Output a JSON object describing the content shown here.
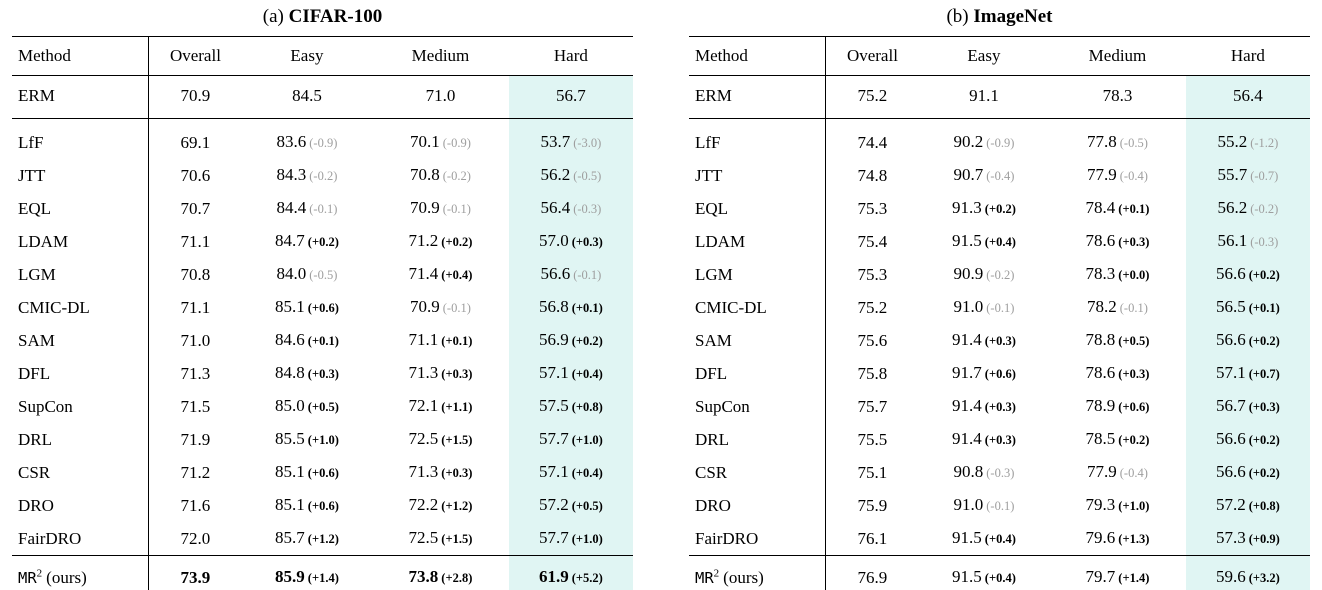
{
  "colors": {
    "hard_column_highlight": "#e0f5f3",
    "delta_negative": "#9e9e9e",
    "delta_positive": "#000000"
  },
  "tables": [
    {
      "caption_prefix": "(a)",
      "caption_title": "CIFAR-100",
      "columns": [
        "Method",
        "Overall",
        "Easy",
        "Medium",
        "Hard"
      ],
      "baseline": {
        "method": "ERM",
        "cells": [
          "70.9",
          "84.5",
          "71.0",
          "56.7"
        ]
      },
      "rows": [
        {
          "method": "LfF",
          "cells": [
            {
              "v": "69.1"
            },
            {
              "v": "83.6",
              "d": "(-0.9)"
            },
            {
              "v": "70.1",
              "d": "(-0.9)"
            },
            {
              "v": "53.7",
              "d": "(-3.0)"
            }
          ]
        },
        {
          "method": "JTT",
          "cells": [
            {
              "v": "70.6"
            },
            {
              "v": "84.3",
              "d": "(-0.2)"
            },
            {
              "v": "70.8",
              "d": "(-0.2)"
            },
            {
              "v": "56.2",
              "d": "(-0.5)"
            }
          ]
        },
        {
          "method": "EQL",
          "cells": [
            {
              "v": "70.7"
            },
            {
              "v": "84.4",
              "d": "(-0.1)"
            },
            {
              "v": "70.9",
              "d": "(-0.1)"
            },
            {
              "v": "56.4",
              "d": "(-0.3)"
            }
          ]
        },
        {
          "method": "LDAM",
          "cells": [
            {
              "v": "71.1"
            },
            {
              "v": "84.7",
              "d": "(+0.2)"
            },
            {
              "v": "71.2",
              "d": "(+0.2)"
            },
            {
              "v": "57.0",
              "d": "(+0.3)"
            }
          ]
        },
        {
          "method": "LGM",
          "cells": [
            {
              "v": "70.8"
            },
            {
              "v": "84.0",
              "d": "(-0.5)"
            },
            {
              "v": "71.4",
              "d": "(+0.4)"
            },
            {
              "v": "56.6",
              "d": "(-0.1)"
            }
          ]
        },
        {
          "method": "CMIC-DL",
          "cells": [
            {
              "v": "71.1"
            },
            {
              "v": "85.1",
              "d": "(+0.6)"
            },
            {
              "v": "70.9",
              "d": "(-0.1)"
            },
            {
              "v": "56.8",
              "d": "(+0.1)"
            }
          ]
        },
        {
          "method": "SAM",
          "cells": [
            {
              "v": "71.0"
            },
            {
              "v": "84.6",
              "d": "(+0.1)"
            },
            {
              "v": "71.1",
              "d": "(+0.1)"
            },
            {
              "v": "56.9",
              "d": "(+0.2)"
            }
          ]
        },
        {
          "method": "DFL",
          "cells": [
            {
              "v": "71.3"
            },
            {
              "v": "84.8",
              "d": "(+0.3)"
            },
            {
              "v": "71.3",
              "d": "(+0.3)"
            },
            {
              "v": "57.1",
              "d": "(+0.4)"
            }
          ]
        },
        {
          "method": "SupCon",
          "cells": [
            {
              "v": "71.5"
            },
            {
              "v": "85.0",
              "d": "(+0.5)"
            },
            {
              "v": "72.1",
              "d": "(+1.1)"
            },
            {
              "v": "57.5",
              "d": "(+0.8)"
            }
          ]
        },
        {
          "method": "DRL",
          "cells": [
            {
              "v": "71.9"
            },
            {
              "v": "85.5",
              "d": "(+1.0)"
            },
            {
              "v": "72.5",
              "d": "(+1.5)"
            },
            {
              "v": "57.7",
              "d": "(+1.0)"
            }
          ]
        },
        {
          "method": "CSR",
          "cells": [
            {
              "v": "71.2"
            },
            {
              "v": "85.1",
              "d": "(+0.6)"
            },
            {
              "v": "71.3",
              "d": "(+0.3)"
            },
            {
              "v": "57.1",
              "d": "(+0.4)"
            }
          ]
        },
        {
          "method": "DRO",
          "cells": [
            {
              "v": "71.6"
            },
            {
              "v": "85.1",
              "d": "(+0.6)"
            },
            {
              "v": "72.2",
              "d": "(+1.2)"
            },
            {
              "v": "57.2",
              "d": "(+0.5)"
            }
          ]
        },
        {
          "method": "FairDRO",
          "cells": [
            {
              "v": "72.0"
            },
            {
              "v": "85.7",
              "d": "(+1.2)"
            },
            {
              "v": "72.5",
              "d": "(+1.5)"
            },
            {
              "v": "57.7",
              "d": "(+1.0)"
            }
          ]
        }
      ],
      "final": {
        "method_mono": "MR",
        "method_sup": "2",
        "method_rest": "(ours)",
        "bold_values": true,
        "cells": [
          {
            "v": "73.9"
          },
          {
            "v": "85.9",
            "d": "(+1.4)"
          },
          {
            "v": "73.8",
            "d": "(+2.8)"
          },
          {
            "v": "61.9",
            "d": "(+5.2)"
          }
        ]
      }
    },
    {
      "caption_prefix": "(b)",
      "caption_title": "ImageNet",
      "columns": [
        "Method",
        "Overall",
        "Easy",
        "Medium",
        "Hard"
      ],
      "baseline": {
        "method": "ERM",
        "cells": [
          "75.2",
          "91.1",
          "78.3",
          "56.4"
        ]
      },
      "rows": [
        {
          "method": "LfF",
          "cells": [
            {
              "v": "74.4"
            },
            {
              "v": "90.2",
              "d": "(-0.9)"
            },
            {
              "v": "77.8",
              "d": "(-0.5)"
            },
            {
              "v": "55.2",
              "d": "(-1.2)"
            }
          ]
        },
        {
          "method": "JTT",
          "cells": [
            {
              "v": "74.8"
            },
            {
              "v": "90.7",
              "d": "(-0.4)"
            },
            {
              "v": "77.9",
              "d": "(-0.4)"
            },
            {
              "v": "55.7",
              "d": "(-0.7)"
            }
          ]
        },
        {
          "method": "EQL",
          "cells": [
            {
              "v": "75.3"
            },
            {
              "v": "91.3",
              "d": "(+0.2)"
            },
            {
              "v": "78.4",
              "d": "(+0.1)"
            },
            {
              "v": "56.2",
              "d": "(-0.2)"
            }
          ]
        },
        {
          "method": "LDAM",
          "cells": [
            {
              "v": "75.4"
            },
            {
              "v": "91.5",
              "d": "(+0.4)"
            },
            {
              "v": "78.6",
              "d": "(+0.3)"
            },
            {
              "v": "56.1",
              "d": "(-0.3)"
            }
          ]
        },
        {
          "method": "LGM",
          "cells": [
            {
              "v": "75.3"
            },
            {
              "v": "90.9",
              "d": "(-0.2)"
            },
            {
              "v": "78.3",
              "d": "(+0.0)"
            },
            {
              "v": "56.6",
              "d": "(+0.2)"
            }
          ]
        },
        {
          "method": "CMIC-DL",
          "cells": [
            {
              "v": "75.2"
            },
            {
              "v": "91.0",
              "d": "(-0.1)"
            },
            {
              "v": "78.2",
              "d": "(-0.1)"
            },
            {
              "v": "56.5",
              "d": "(+0.1)"
            }
          ]
        },
        {
          "method": "SAM",
          "cells": [
            {
              "v": "75.6"
            },
            {
              "v": "91.4",
              "d": "(+0.3)"
            },
            {
              "v": "78.8",
              "d": "(+0.5)"
            },
            {
              "v": "56.6",
              "d": "(+0.2)"
            }
          ]
        },
        {
          "method": "DFL",
          "cells": [
            {
              "v": "75.8"
            },
            {
              "v": "91.7",
              "d": "(+0.6)"
            },
            {
              "v": "78.6",
              "d": "(+0.3)"
            },
            {
              "v": "57.1",
              "d": "(+0.7)"
            }
          ]
        },
        {
          "method": "SupCon",
          "cells": [
            {
              "v": "75.7"
            },
            {
              "v": "91.4",
              "d": "(+0.3)"
            },
            {
              "v": "78.9",
              "d": "(+0.6)"
            },
            {
              "v": "56.7",
              "d": "(+0.3)"
            }
          ]
        },
        {
          "method": "DRL",
          "cells": [
            {
              "v": "75.5"
            },
            {
              "v": "91.4",
              "d": "(+0.3)"
            },
            {
              "v": "78.5",
              "d": "(+0.2)"
            },
            {
              "v": "56.6",
              "d": "(+0.2)"
            }
          ]
        },
        {
          "method": "CSR",
          "cells": [
            {
              "v": "75.1"
            },
            {
              "v": "90.8",
              "d": "(-0.3)"
            },
            {
              "v": "77.9",
              "d": "(-0.4)"
            },
            {
              "v": "56.6",
              "d": "(+0.2)"
            }
          ]
        },
        {
          "method": "DRO",
          "cells": [
            {
              "v": "75.9"
            },
            {
              "v": "91.0",
              "d": "(-0.1)"
            },
            {
              "v": "79.3",
              "d": "(+1.0)"
            },
            {
              "v": "57.2",
              "d": "(+0.8)"
            }
          ]
        },
        {
          "method": "FairDRO",
          "cells": [
            {
              "v": "76.1"
            },
            {
              "v": "91.5",
              "d": "(+0.4)"
            },
            {
              "v": "79.6",
              "d": "(+1.3)"
            },
            {
              "v": "57.3",
              "d": "(+0.9)"
            }
          ]
        }
      ],
      "final": {
        "method_mono": "MR",
        "method_sup": "2",
        "method_rest": "(ours)",
        "bold_values": false,
        "cells": [
          {
            "v": "76.9"
          },
          {
            "v": "91.5",
            "d": "(+0.4)"
          },
          {
            "v": "79.7",
            "d": "(+1.4)"
          },
          {
            "v": "59.6",
            "d": "(+3.2)"
          }
        ]
      }
    }
  ]
}
